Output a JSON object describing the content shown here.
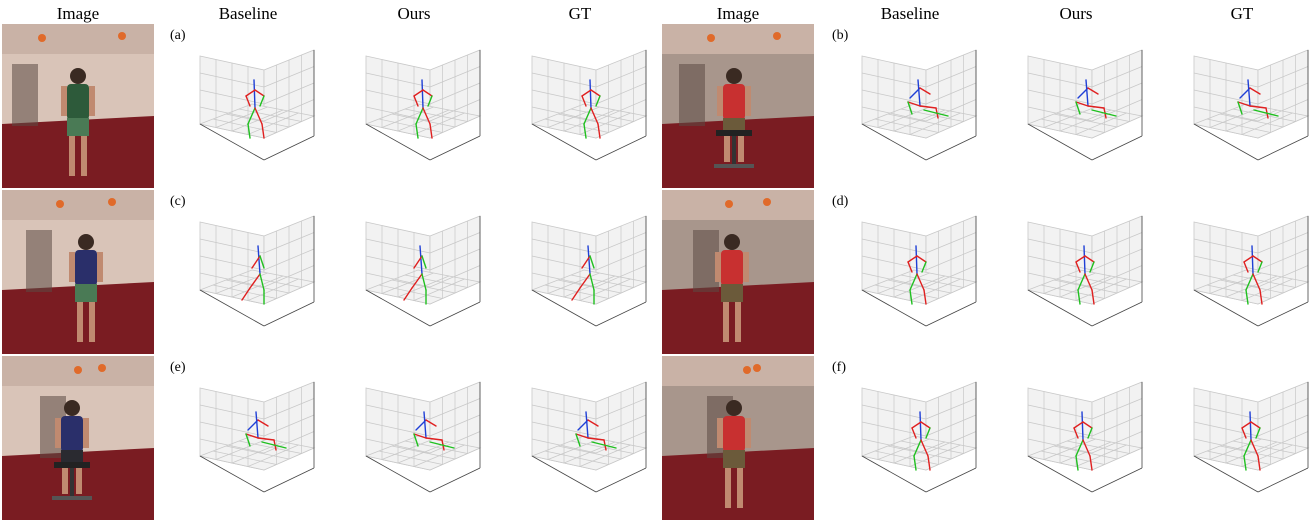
{
  "headers": [
    "Image",
    "Baseline",
    "Ours",
    "GT",
    "Image",
    "Baseline",
    "Ours",
    "GT"
  ],
  "rows": [
    {
      "left": {
        "label": "(a)",
        "photo": "photo-person-standing-green-shorts"
      },
      "right": {
        "label": "(b)",
        "photo": "photo-person-seated-red-shirt"
      }
    },
    {
      "left": {
        "label": "(c)",
        "photo": "photo-person-walking-back-view"
      },
      "right": {
        "label": "(d)",
        "photo": "photo-person-back-view-hands-on-hips"
      }
    },
    {
      "left": {
        "label": "(e)",
        "photo": "photo-person-seated-on-chair-back-view"
      },
      "right": {
        "label": "(f)",
        "photo": "photo-person-standing-back-view-red-shirt"
      }
    }
  ],
  "colors": {
    "spine": "#1f3fd6",
    "left_limbs": "#e02020",
    "right_limbs": "#20c020",
    "grid": "#c8c8c8",
    "pane": "#f2f2f2",
    "carpet": "#7a1c22",
    "wall": "#d9c4b8"
  }
}
